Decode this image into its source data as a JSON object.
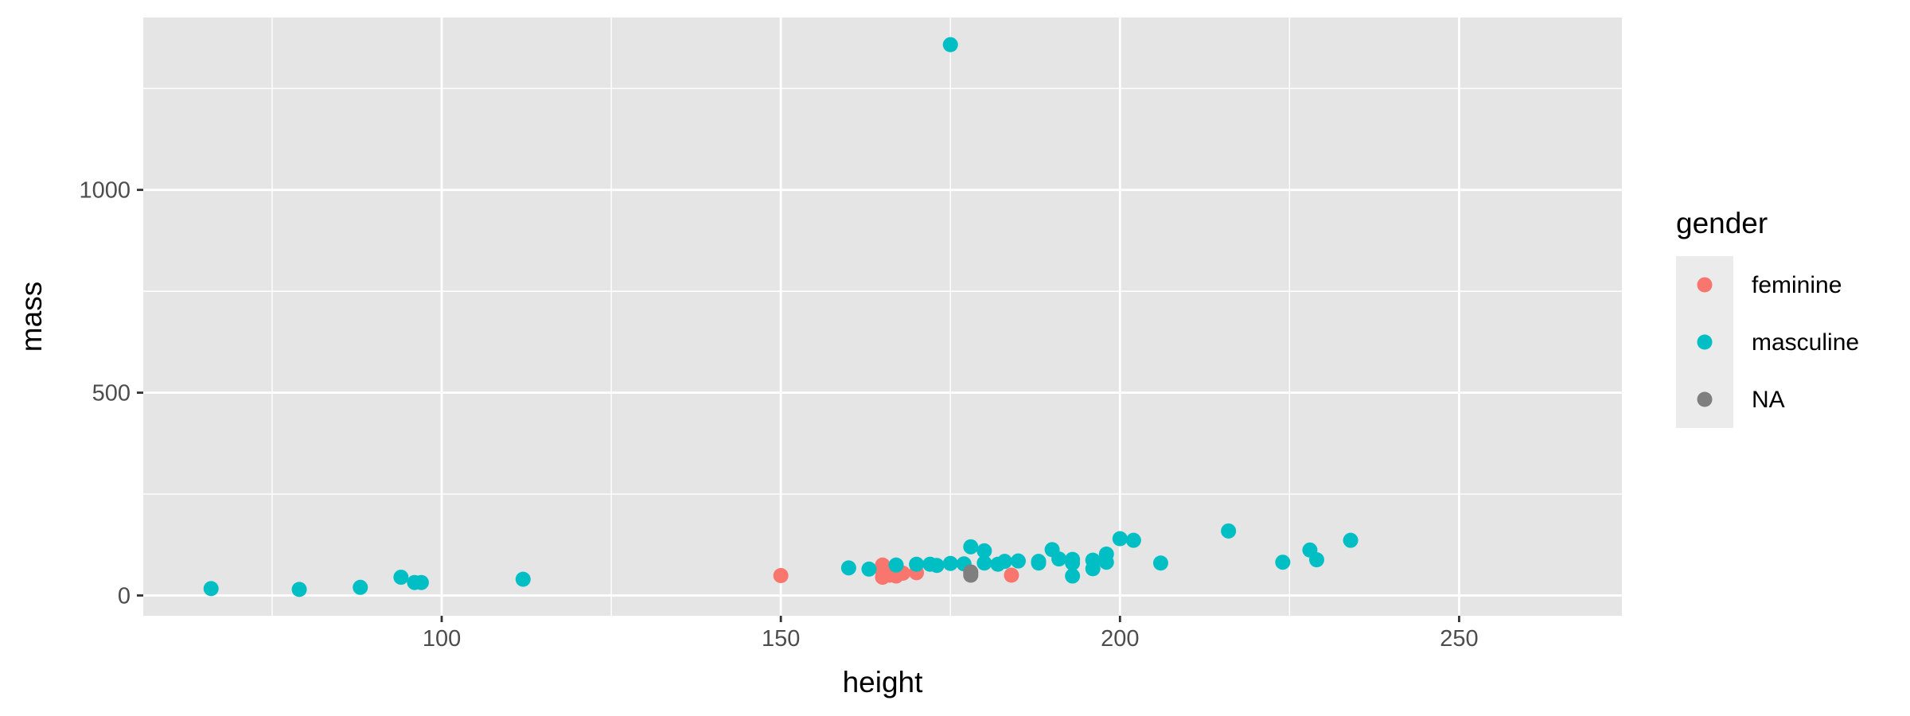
{
  "chart_data": {
    "type": "scatter",
    "title": "",
    "xlabel": "height",
    "ylabel": "mass",
    "xlim": [
      56,
      274
    ],
    "ylim": [
      -50,
      1425
    ],
    "x_ticks": [
      100,
      150,
      200,
      250
    ],
    "x_tick_labels": [
      "100",
      "150",
      "200",
      "250"
    ],
    "x_minor_ticks": [
      75,
      125,
      175,
      225
    ],
    "y_ticks": [
      0,
      500,
      1000
    ],
    "y_tick_labels": [
      "0",
      "500",
      "1000"
    ],
    "y_minor_ticks": [
      250,
      750,
      1250
    ],
    "grid": true,
    "panel_background": "#e5e5e5",
    "grid_color": "#ffffff",
    "legend": {
      "title": "gender",
      "placement": "right",
      "entries": [
        "feminine",
        "masculine",
        "NA"
      ]
    },
    "series": [
      {
        "name": "feminine",
        "color": "#f8766d",
        "points": [
          {
            "x": 150,
            "y": 49
          },
          {
            "x": 165,
            "y": 75
          },
          {
            "x": 165,
            "y": 45
          },
          {
            "x": 166,
            "y": 50
          },
          {
            "x": 167,
            "y": 48
          },
          {
            "x": 168,
            "y": 55
          },
          {
            "x": 170,
            "y": 56.2
          },
          {
            "x": 178,
            "y": 55
          },
          {
            "x": 184,
            "y": 50
          },
          {
            "x": 165,
            "y": 60
          }
        ]
      },
      {
        "name": "masculine",
        "color": "#00bfc4",
        "points": [
          {
            "x": 66,
            "y": 17
          },
          {
            "x": 79,
            "y": 15
          },
          {
            "x": 88,
            "y": 20
          },
          {
            "x": 94,
            "y": 45
          },
          {
            "x": 96,
            "y": 32
          },
          {
            "x": 97,
            "y": 32
          },
          {
            "x": 112,
            "y": 40
          },
          {
            "x": 160,
            "y": 68
          },
          {
            "x": 163,
            "y": 65
          },
          {
            "x": 167,
            "y": 75
          },
          {
            "x": 170,
            "y": 77
          },
          {
            "x": 172,
            "y": 77
          },
          {
            "x": 173,
            "y": 74
          },
          {
            "x": 175,
            "y": 79
          },
          {
            "x": 175,
            "y": 1358
          },
          {
            "x": 177,
            "y": 78
          },
          {
            "x": 178,
            "y": 120
          },
          {
            "x": 180,
            "y": 110
          },
          {
            "x": 180,
            "y": 80
          },
          {
            "x": 182,
            "y": 77
          },
          {
            "x": 183,
            "y": 84
          },
          {
            "x": 185,
            "y": 85
          },
          {
            "x": 188,
            "y": 84
          },
          {
            "x": 188,
            "y": 80
          },
          {
            "x": 190,
            "y": 113
          },
          {
            "x": 191,
            "y": 90
          },
          {
            "x": 193,
            "y": 89
          },
          {
            "x": 193,
            "y": 48
          },
          {
            "x": 193,
            "y": 80
          },
          {
            "x": 196,
            "y": 66
          },
          {
            "x": 196,
            "y": 87
          },
          {
            "x": 198,
            "y": 102
          },
          {
            "x": 198,
            "y": 82
          },
          {
            "x": 200,
            "y": 140
          },
          {
            "x": 202,
            "y": 136
          },
          {
            "x": 206,
            "y": 80
          },
          {
            "x": 216,
            "y": 159
          },
          {
            "x": 224,
            "y": 82
          },
          {
            "x": 228,
            "y": 112
          },
          {
            "x": 229,
            "y": 88
          },
          {
            "x": 234,
            "y": 136
          }
        ]
      },
      {
        "name": "NA",
        "color": "#7f7f7f",
        "points": [
          {
            "x": 178,
            "y": 50
          },
          {
            "x": 178,
            "y": 58
          }
        ]
      }
    ]
  }
}
